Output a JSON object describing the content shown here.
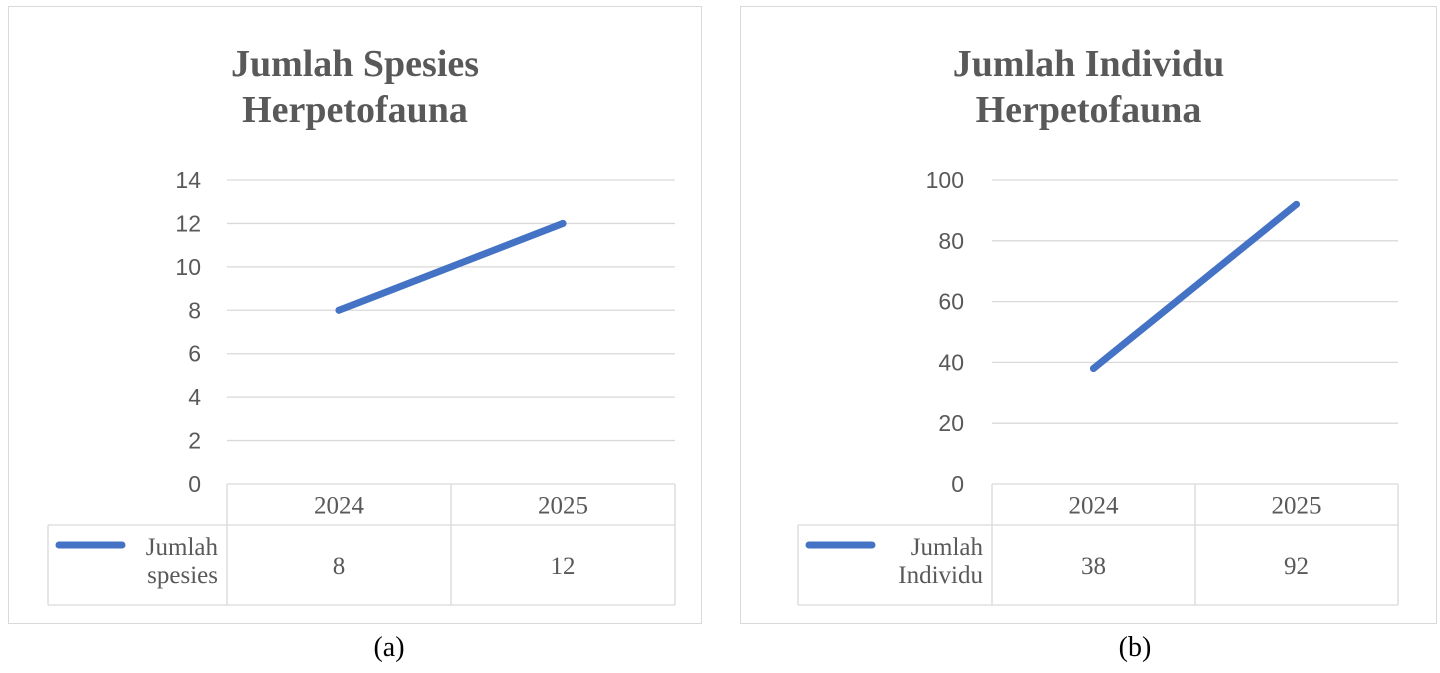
{
  "chart_data": [
    {
      "type": "line",
      "title": "Jumlah Spesies Herpetofauna",
      "title_lines": [
        "Jumlah Spesies",
        "Herpetofauna"
      ],
      "categories": [
        "2024",
        "2025"
      ],
      "series": [
        {
          "name": "Jumlah spesies",
          "name_lines": [
            "Jumlah",
            "spesies"
          ],
          "values": [
            8,
            12
          ]
        }
      ],
      "ylim": [
        0,
        14
      ],
      "yticks": [
        0,
        2,
        4,
        6,
        8,
        10,
        12,
        14
      ],
      "grid": true,
      "legend": "data-table",
      "data_table": true,
      "caption": "(a)"
    },
    {
      "type": "line",
      "title": "Jumlah Individu Herpetofauna",
      "title_lines": [
        "Jumlah Individu",
        "Herpetofauna"
      ],
      "categories": [
        "2024",
        "2025"
      ],
      "series": [
        {
          "name": "Jumlah Individu",
          "name_lines": [
            "Jumlah",
            "Individu"
          ],
          "values": [
            38,
            92
          ]
        }
      ],
      "ylim": [
        0,
        100
      ],
      "yticks": [
        0,
        20,
        40,
        60,
        80,
        100
      ],
      "grid": true,
      "legend": "data-table",
      "data_table": true,
      "caption": "(b)"
    }
  ],
  "colors": {
    "series": "#4472c4",
    "grid": "#d9d9d9",
    "text": "#595959"
  }
}
